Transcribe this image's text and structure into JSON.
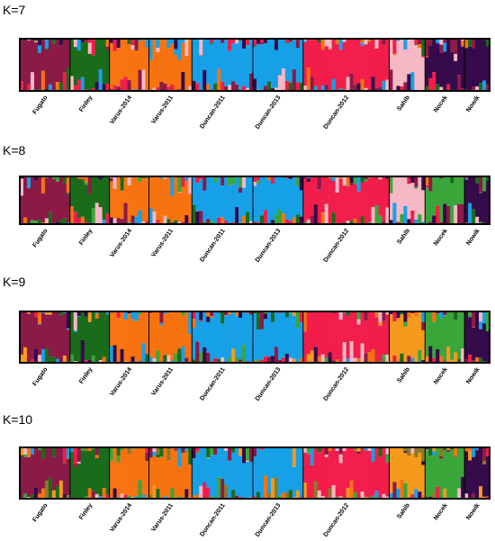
{
  "chart_data": [
    {
      "type": "stacked-bar",
      "title": "K=7",
      "populations": [
        {
          "name": "Fugato",
          "n": 14
        },
        {
          "name": "Finley",
          "n": 11
        },
        {
          "name": "Varus-2014",
          "n": 11
        },
        {
          "name": "Varus-2011",
          "n": 12
        },
        {
          "name": "Duncan-2011",
          "n": 17
        },
        {
          "name": "Duncan-2013",
          "n": 14
        },
        {
          "name": "Duncan-2012",
          "n": 24
        },
        {
          "name": "Sahib",
          "n": 10
        },
        {
          "name": "Nocek",
          "n": 11
        },
        {
          "name": "Nowik",
          "n": 7
        }
      ],
      "dominant": [
        "c1",
        "c2",
        "c3",
        "c3",
        "c4",
        "c4",
        "c5",
        "c6",
        "c7",
        "c7"
      ],
      "palette": {
        "c1": "#8b1a47",
        "c2": "#1a6b1a",
        "c3": "#f7730f",
        "c4": "#16a0e8",
        "c5": "#f21d4a",
        "c6": "#f5b8c4",
        "c7": "#350a4a"
      }
    },
    {
      "type": "stacked-bar",
      "title": "K=8",
      "populations": [
        {
          "name": "Fugato",
          "n": 14
        },
        {
          "name": "Finley",
          "n": 11
        },
        {
          "name": "Varus-2014",
          "n": 11
        },
        {
          "name": "Varus-2011",
          "n": 12
        },
        {
          "name": "Duncan-2011",
          "n": 17
        },
        {
          "name": "Duncan-2013",
          "n": 14
        },
        {
          "name": "Duncan-2012",
          "n": 24
        },
        {
          "name": "Sahib",
          "n": 10
        },
        {
          "name": "Nocek",
          "n": 11
        },
        {
          "name": "Nowik",
          "n": 7
        }
      ],
      "dominant": [
        "c1",
        "c2",
        "c3",
        "c3",
        "c4",
        "c4",
        "c5",
        "c6",
        "c8",
        "c7"
      ],
      "palette": {
        "c1": "#8b1a47",
        "c2": "#1a6b1a",
        "c3": "#f7730f",
        "c4": "#16a0e8",
        "c5": "#f21d4a",
        "c6": "#f5b8c4",
        "c7": "#350a4a",
        "c8": "#3aa63a"
      }
    },
    {
      "type": "stacked-bar",
      "title": "K=9",
      "populations": [
        {
          "name": "Fugato",
          "n": 14
        },
        {
          "name": "Finley",
          "n": 11
        },
        {
          "name": "Varus-2014",
          "n": 11
        },
        {
          "name": "Varus-2011",
          "n": 12
        },
        {
          "name": "Duncan-2011",
          "n": 17
        },
        {
          "name": "Duncan-2013",
          "n": 14
        },
        {
          "name": "Duncan-2012",
          "n": 24
        },
        {
          "name": "Sahib",
          "n": 10
        },
        {
          "name": "Nocek",
          "n": 11
        },
        {
          "name": "Nowik",
          "n": 7
        }
      ],
      "dominant": [
        "c1",
        "c2",
        "c3",
        "c3",
        "c4",
        "c4",
        "c5",
        "c9",
        "c8",
        "c7"
      ],
      "palette": {
        "c1": "#8b1a47",
        "c2": "#1a6b1a",
        "c3": "#f7730f",
        "c4": "#16a0e8",
        "c5": "#f21d4a",
        "c6": "#f5b8c4",
        "c7": "#350a4a",
        "c8": "#3aa63a",
        "c9": "#f59a1c"
      }
    },
    {
      "type": "stacked-bar",
      "title": "K=10",
      "populations": [
        {
          "name": "Fugato",
          "n": 14
        },
        {
          "name": "Finley",
          "n": 11
        },
        {
          "name": "Varus-2014",
          "n": 11
        },
        {
          "name": "Varus-2011",
          "n": 12
        },
        {
          "name": "Duncan-2011",
          "n": 17
        },
        {
          "name": "Duncan-2013",
          "n": 14
        },
        {
          "name": "Duncan-2012",
          "n": 24
        },
        {
          "name": "Sahib",
          "n": 10
        },
        {
          "name": "Nocek",
          "n": 11
        },
        {
          "name": "Nowik",
          "n": 7
        }
      ],
      "dominant": [
        "c1",
        "c2",
        "c3",
        "c3",
        "c4",
        "c4",
        "c5",
        "c9",
        "c8",
        "c7"
      ],
      "palette": {
        "c1": "#8b1a47",
        "c2": "#1a6b1a",
        "c3": "#f7730f",
        "c4": "#16a0e8",
        "c5": "#f21d4a",
        "c6": "#f5b8c4",
        "c7": "#350a4a",
        "c8": "#3aa63a",
        "c9": "#f59a1c",
        "c10": "#8a7a2a"
      }
    }
  ]
}
